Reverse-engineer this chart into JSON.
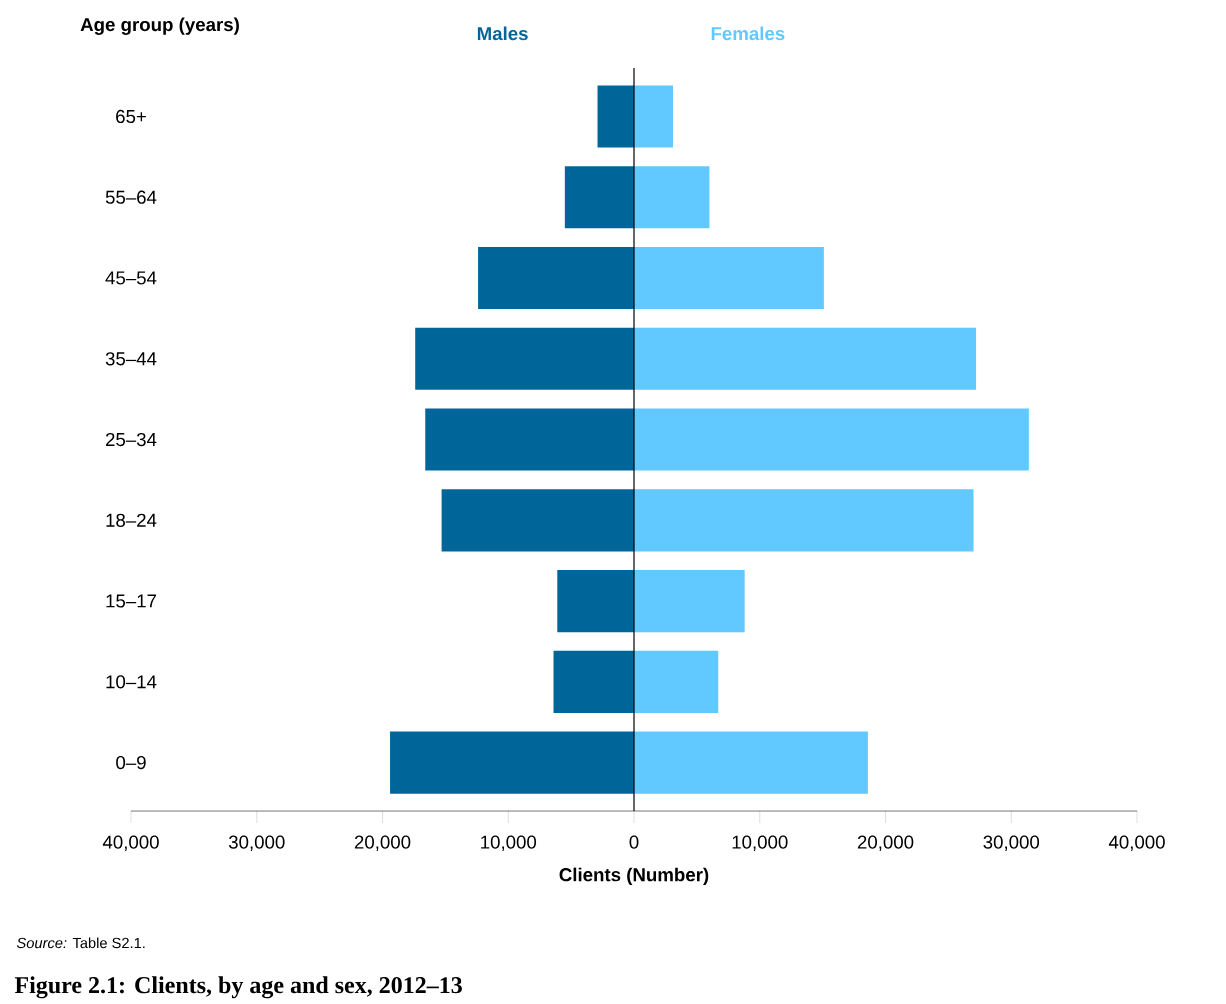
{
  "chart_data": {
    "type": "bar",
    "orientation": "horizontal",
    "stacked": true,
    "title": "Figure 2.1: Clients, by age and sex, 2012–13",
    "xlabel": "Clients (Number)",
    "ylabel": "Age group (years)",
    "annotations": [
      "*Source:* Table S2.1."
    ],
    "categories": [
      "65+",
      "55–64",
      "45–54",
      "35–44",
      "25–34",
      "18–24",
      "15–17",
      "10–14",
      "0–9"
    ],
    "series": [
      {
        "name": "Males",
        "color": "#00669a",
        "values": [
          -2900,
          -5500,
          -12400,
          -17400,
          -16600,
          -15300,
          -6100,
          -6400,
          -19400
        ]
      },
      {
        "name": "Females",
        "color": "#61c9ff",
        "values": [
          3100,
          6000,
          15100,
          27200,
          31400,
          27000,
          8800,
          6700,
          18600
        ]
      }
    ],
    "xlim": [
      -40000,
      40000
    ],
    "xticks": [
      {
        "value": -40000,
        "label": "40,000"
      },
      {
        "value": -30000,
        "label": "30,000"
      },
      {
        "value": -20000,
        "label": "20,000"
      },
      {
        "value": -10000,
        "label": "10,000"
      },
      0,
      {
        "value": 10000,
        "label": "10,000"
      },
      {
        "value": 20000,
        "label": "20,000"
      },
      {
        "value": 30000,
        "label": "30,000"
      },
      {
        "value": 40000,
        "label": "40,000"
      }
    ],
    "ref_lines": [
      {
        "axis": "x",
        "value": 0
      }
    ]
  }
}
